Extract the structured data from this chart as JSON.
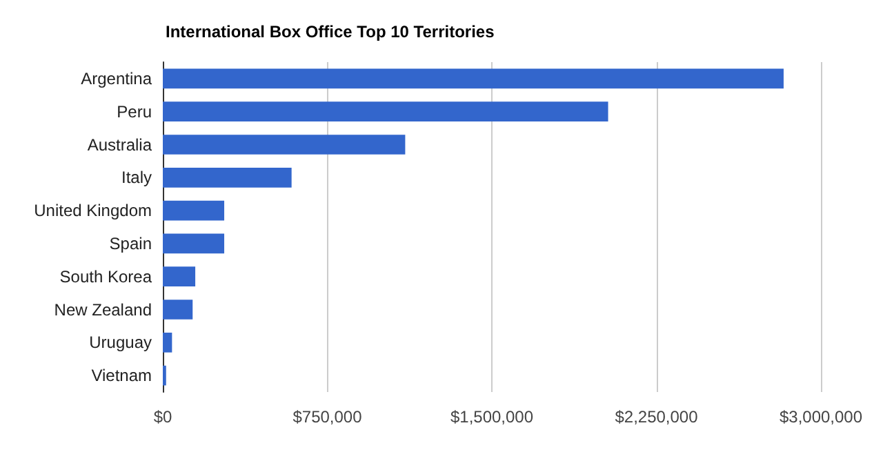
{
  "chart_data": {
    "type": "bar",
    "orientation": "horizontal",
    "title": "International Box Office Top 10 Territories",
    "categories": [
      "Argentina",
      "Peru",
      "Australia",
      "Italy",
      "United Kingdom",
      "Spain",
      "South Korea",
      "New Zealand",
      "Uruguay",
      "Vietnam"
    ],
    "values": [
      2830000,
      2030000,
      1105000,
      587000,
      280000,
      280000,
      148000,
      136000,
      42000,
      15000
    ],
    "color": "#3366cc",
    "xlim": [
      0,
      3000000
    ],
    "xticks": [
      {
        "value": 0,
        "label": "$0"
      },
      {
        "value": 750000,
        "label": "$750,000"
      },
      {
        "value": 1500000,
        "label": "$1,500,000"
      },
      {
        "value": 2250000,
        "label": "$2,250,000"
      },
      {
        "value": 3000000,
        "label": "$3,000,000"
      }
    ],
    "grid": "x"
  }
}
